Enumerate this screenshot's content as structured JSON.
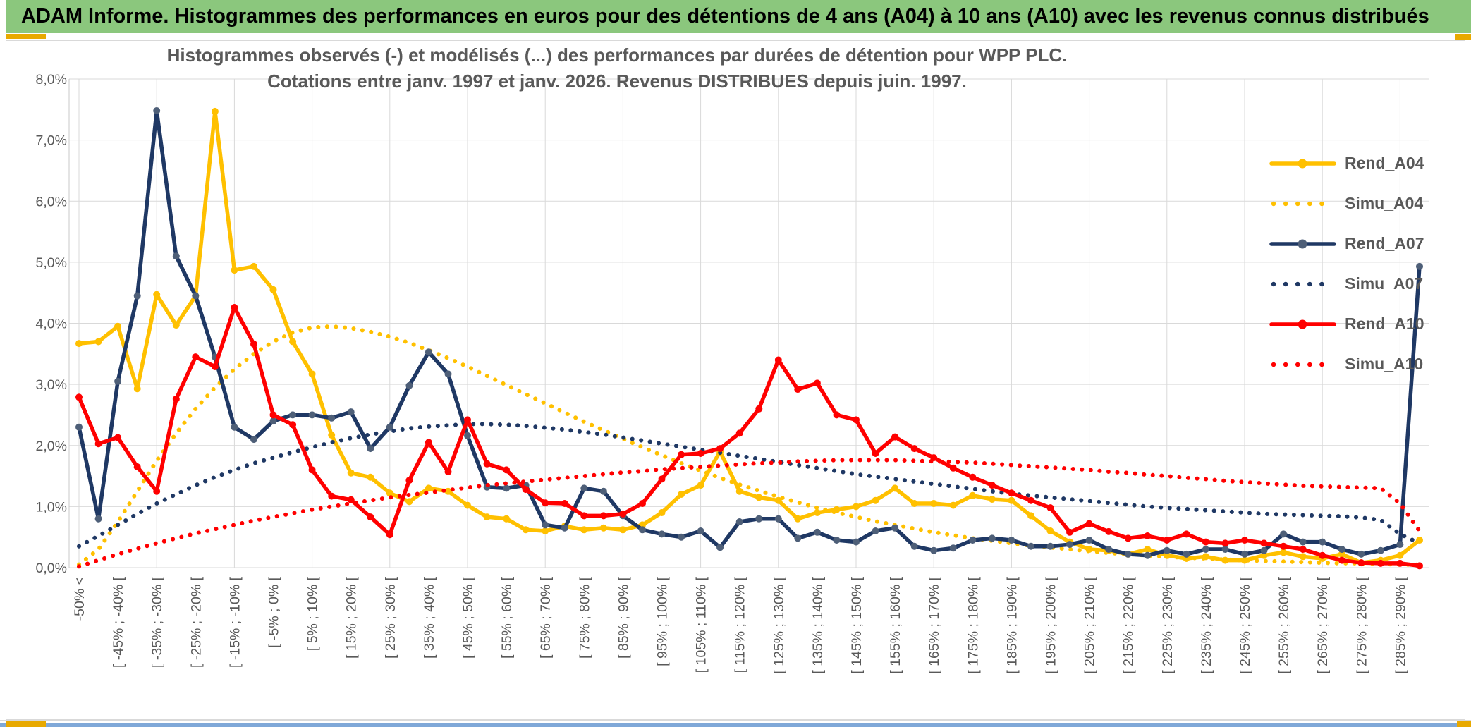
{
  "window": {
    "header_title": "ADAM Informe. Histogrammes des performances en euros pour des détentions de 4 ans (A04) à 10 ans (A10) avec les revenus connus distribués"
  },
  "colors": {
    "header_green": "#8BC77D",
    "accent_gold": "#E8A900",
    "bottom_blue": "#7FA8D8",
    "grid_gray": "#D9D9D9",
    "text_gray": "#595959",
    "series_gold": "#FFC000",
    "series_navy": "#1F3864",
    "series_navy_marker": "#4E5F78",
    "series_red": "#FF0000"
  },
  "chart_data": {
    "type": "line",
    "title_line1": "Histogrammes observés (-) et modélisés (...) des performances par durées de détention pour WPP PLC.",
    "title_line2": "Cotations entre janv. 1997 et janv. 2026. Revenus DISTRIBUES depuis juin. 1997.",
    "ylabel": "",
    "xlabel": "",
    "ylim_percent": [
      0,
      8
    ],
    "grid": true,
    "legend_position": "right-top",
    "n_points": 70,
    "x_tick_every": 2,
    "v_gridline_every": 4,
    "y_tick_labels": [
      "0,0%",
      "1,0%",
      "2,0%",
      "3,0%",
      "4,0%",
      "5,0%",
      "6,0%",
      "7,0%",
      "8,0%"
    ],
    "x_tick_labels": [
      "-50% <",
      "[ -45% ; -40% [",
      "[ -35% ; -30% [",
      "[ -25% ; -20% [",
      "[ -15% ; -10% [",
      "[ -5% ; 0% [",
      "[ 5% ; 10% [",
      "[ 15% ; 20% [",
      "[ 25% ; 30% [",
      "[ 35% ; 40% [",
      "[ 45% ; 50% [",
      "[ 55% ; 60% [",
      "[ 65% ; 70% [",
      "[ 75% ; 80% [",
      "[ 85% ; 90% [",
      "[ 95% ; 100% [",
      "[ 105% ; 110% [",
      "[ 115% ; 120% [",
      "[ 125% ; 130% [",
      "[ 135% ; 140% [",
      "[ 145% ; 150% [",
      "[ 155% ; 160% [",
      "[ 165% ; 170% [",
      "[ 175% ; 180% [",
      "[ 185% ; 190% [",
      "[ 195% ; 200% [",
      "[ 205% ; 210% [",
      "[ 215% ; 220% [",
      "[ 225% ; 230% [",
      "[ 235% ; 240% [",
      "[ 245% ; 250% [",
      "[ 255% ; 260% [",
      "[ 265% ; 270% [",
      "[ 275% ; 280% [",
      "[ 285% ; 290% ["
    ],
    "series": [
      {
        "name": "Rend_A04",
        "style": "solid",
        "color": "#FFC000",
        "marker_color": "#FFC000",
        "values": [
          3.67,
          3.7,
          3.95,
          2.93,
          4.47,
          3.97,
          4.45,
          7.47,
          4.87,
          4.93,
          4.55,
          3.7,
          3.17,
          2.17,
          1.55,
          1.48,
          1.22,
          1.08,
          1.3,
          1.25,
          1.02,
          0.83,
          0.8,
          0.62,
          0.6,
          0.68,
          0.62,
          0.65,
          0.62,
          0.7,
          0.9,
          1.2,
          1.35,
          1.9,
          1.25,
          1.15,
          1.1,
          0.8,
          0.9,
          0.95,
          1.0,
          1.1,
          1.3,
          1.05,
          1.05,
          1.02,
          1.18,
          1.12,
          1.1,
          0.85,
          0.6,
          0.42,
          0.3,
          0.28,
          0.22,
          0.3,
          0.2,
          0.15,
          0.18,
          0.12,
          0.12,
          0.2,
          0.25,
          0.18,
          0.15,
          0.22,
          0.08,
          0.12,
          0.2,
          0.45
        ]
      },
      {
        "name": "Simu_A04",
        "style": "dotted",
        "color": "#FFC000",
        "values": [
          0.05,
          0.3,
          0.75,
          1.25,
          1.75,
          2.2,
          2.6,
          2.95,
          3.25,
          3.5,
          3.7,
          3.85,
          3.93,
          3.95,
          3.92,
          3.86,
          3.78,
          3.68,
          3.56,
          3.43,
          3.29,
          3.14,
          2.99,
          2.84,
          2.69,
          2.54,
          2.39,
          2.25,
          2.11,
          1.97,
          1.84,
          1.71,
          1.59,
          1.47,
          1.36,
          1.26,
          1.16,
          1.07,
          0.98,
          0.9,
          0.83,
          0.76,
          0.7,
          0.64,
          0.58,
          0.53,
          0.48,
          0.44,
          0.4,
          0.36,
          0.33,
          0.3,
          0.27,
          0.24,
          0.22,
          0.2,
          0.18,
          0.16,
          0.15,
          0.13,
          0.12,
          0.11,
          0.1,
          0.09,
          0.08,
          0.07,
          0.07,
          0.06,
          0.05,
          0.05
        ]
      },
      {
        "name": "Rend_A07",
        "style": "solid",
        "color": "#1F3864",
        "marker_color": "#4E5F78",
        "values": [
          2.3,
          0.8,
          3.05,
          4.45,
          7.48,
          5.1,
          4.45,
          3.45,
          2.3,
          2.1,
          2.4,
          2.5,
          2.5,
          2.45,
          2.55,
          1.95,
          2.3,
          2.98,
          3.53,
          3.17,
          2.16,
          1.32,
          1.3,
          1.35,
          0.7,
          0.65,
          1.3,
          1.25,
          0.85,
          0.62,
          0.55,
          0.5,
          0.6,
          0.33,
          0.75,
          0.8,
          0.8,
          0.48,
          0.58,
          0.45,
          0.42,
          0.6,
          0.65,
          0.35,
          0.28,
          0.32,
          0.45,
          0.48,
          0.45,
          0.35,
          0.35,
          0.38,
          0.45,
          0.3,
          0.22,
          0.2,
          0.28,
          0.22,
          0.3,
          0.3,
          0.22,
          0.28,
          0.55,
          0.42,
          0.42,
          0.3,
          0.22,
          0.28,
          0.38,
          4.93
        ]
      },
      {
        "name": "Simu_A07",
        "style": "dotted",
        "color": "#1F3864",
        "values": [
          0.35,
          0.52,
          0.7,
          0.88,
          1.05,
          1.2,
          1.35,
          1.48,
          1.6,
          1.71,
          1.8,
          1.89,
          1.97,
          2.05,
          2.12,
          2.18,
          2.23,
          2.28,
          2.31,
          2.33,
          2.35,
          2.35,
          2.34,
          2.32,
          2.29,
          2.26,
          2.22,
          2.18,
          2.13,
          2.08,
          2.03,
          1.98,
          1.93,
          1.88,
          1.83,
          1.78,
          1.73,
          1.68,
          1.63,
          1.58,
          1.53,
          1.49,
          1.45,
          1.41,
          1.37,
          1.33,
          1.29,
          1.25,
          1.21,
          1.18,
          1.15,
          1.12,
          1.09,
          1.06,
          1.03,
          1.0,
          0.98,
          0.96,
          0.94,
          0.92,
          0.9,
          0.88,
          0.87,
          0.86,
          0.85,
          0.84,
          0.82,
          0.78,
          0.55,
          0.4
        ]
      },
      {
        "name": "Rend_A10",
        "style": "solid",
        "color": "#FF0000",
        "marker_color": "#FF0000",
        "values": [
          2.79,
          2.03,
          2.13,
          1.65,
          1.25,
          2.76,
          3.45,
          3.29,
          4.26,
          3.66,
          2.5,
          2.34,
          1.6,
          1.17,
          1.11,
          0.83,
          0.54,
          1.43,
          2.05,
          1.57,
          2.42,
          1.7,
          1.6,
          1.28,
          1.06,
          1.05,
          0.85,
          0.85,
          0.88,
          1.05,
          1.45,
          1.85,
          1.87,
          1.95,
          2.2,
          2.6,
          3.4,
          2.92,
          3.02,
          2.5,
          2.42,
          1.87,
          2.14,
          1.95,
          1.8,
          1.63,
          1.48,
          1.35,
          1.22,
          1.1,
          0.98,
          0.58,
          0.72,
          0.59,
          0.48,
          0.52,
          0.45,
          0.55,
          0.42,
          0.4,
          0.45,
          0.4,
          0.35,
          0.3,
          0.2,
          0.12,
          0.08,
          0.07,
          0.07,
          0.03
        ]
      },
      {
        "name": "Simu_A10",
        "style": "dotted",
        "color": "#FF0000",
        "values": [
          0.02,
          0.12,
          0.22,
          0.31,
          0.4,
          0.48,
          0.56,
          0.63,
          0.7,
          0.77,
          0.83,
          0.89,
          0.95,
          1.0,
          1.05,
          1.1,
          1.15,
          1.19,
          1.23,
          1.27,
          1.31,
          1.35,
          1.38,
          1.41,
          1.44,
          1.47,
          1.5,
          1.53,
          1.56,
          1.58,
          1.61,
          1.63,
          1.65,
          1.67,
          1.69,
          1.71,
          1.72,
          1.74,
          1.75,
          1.76,
          1.76,
          1.76,
          1.76,
          1.75,
          1.74,
          1.73,
          1.72,
          1.7,
          1.68,
          1.66,
          1.64,
          1.62,
          1.6,
          1.57,
          1.55,
          1.52,
          1.5,
          1.47,
          1.45,
          1.42,
          1.4,
          1.38,
          1.36,
          1.34,
          1.33,
          1.32,
          1.31,
          1.3,
          1.05,
          0.6
        ]
      }
    ]
  }
}
